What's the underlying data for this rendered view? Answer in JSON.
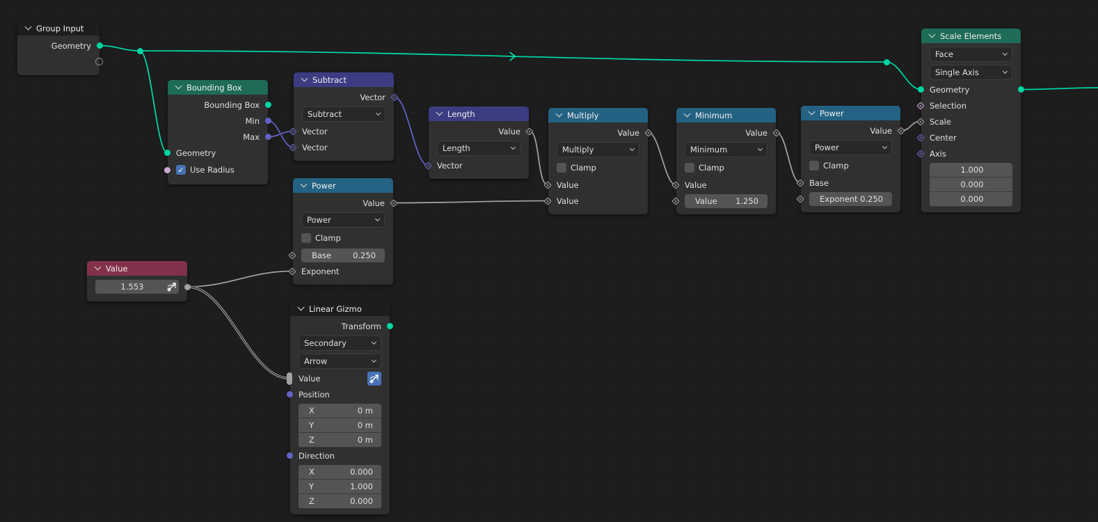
{
  "colors": {
    "geometry": "#00d6a3",
    "vector": "#6363c7",
    "float": "#a1a1a1",
    "boolean": "#cca6d6",
    "header_input": "#1d1d1d",
    "header_geometry": "#1e6b57",
    "header_vector": "#3c3c83",
    "header_converter": "#246283",
    "header_value": "#83314a",
    "checkbox_on": "#4772b3"
  },
  "nodes": [
    {
      "id": "gi",
      "title": "Group Input",
      "header": "header_input",
      "rows": [
        {
          "type": "out",
          "key": "geometry",
          "label": "Geometry",
          "sock": "geometry"
        },
        {
          "type": "out",
          "key": "empty",
          "label": "",
          "sock": "hollow"
        }
      ]
    },
    {
      "id": "bb",
      "title": "Bounding Box",
      "header": "header_geometry",
      "rows": [
        {
          "type": "out",
          "key": "bbox",
          "label": "Bounding Box",
          "sock": "geometry"
        },
        {
          "type": "out",
          "key": "min",
          "label": "Min",
          "sock": "vector"
        },
        {
          "type": "out",
          "key": "max",
          "label": "Max",
          "sock": "vector"
        },
        {
          "type": "in",
          "key": "geometry",
          "label": "Geometry",
          "sock": "geometry"
        },
        {
          "type": "check",
          "key": "use_radius",
          "label": "Use Radius",
          "checked": true,
          "sock": "boolean"
        }
      ]
    },
    {
      "id": "sub",
      "title": "Subtract",
      "header": "header_vector",
      "rows": [
        {
          "type": "out",
          "key": "vector",
          "label": "Vector",
          "sock": "vector",
          "diamond": true
        },
        {
          "type": "select",
          "value": "Subtract"
        },
        {
          "type": "in",
          "key": "vector1",
          "label": "Vector",
          "sock": "vector",
          "diamond": true
        },
        {
          "type": "in",
          "key": "vector2",
          "label": "Vector",
          "sock": "vector",
          "diamond": true
        }
      ]
    },
    {
      "id": "len",
      "title": "Length",
      "header": "header_vector",
      "rows": [
        {
          "type": "out",
          "key": "value",
          "label": "Value",
          "sock": "float",
          "diamond": true
        },
        {
          "type": "select",
          "value": "Length"
        },
        {
          "type": "in",
          "key": "vector",
          "label": "Vector",
          "sock": "vector",
          "diamond": true
        }
      ]
    },
    {
      "id": "mul",
      "title": "Multiply",
      "header": "header_converter",
      "rows": [
        {
          "type": "out",
          "key": "value",
          "label": "Value",
          "sock": "float",
          "diamond": true
        },
        {
          "type": "select",
          "value": "Multiply"
        },
        {
          "type": "check",
          "label": "Clamp",
          "checked": false
        },
        {
          "type": "in",
          "key": "value1",
          "label": "Value",
          "sock": "float",
          "diamond": true
        },
        {
          "type": "in",
          "key": "value2",
          "label": "Value",
          "sock": "float",
          "diamond": true
        }
      ]
    },
    {
      "id": "min",
      "title": "Minimum",
      "header": "header_converter",
      "rows": [
        {
          "type": "out",
          "key": "value",
          "label": "Value",
          "sock": "float",
          "diamond": true
        },
        {
          "type": "select",
          "value": "Minimum"
        },
        {
          "type": "check",
          "label": "Clamp",
          "checked": false
        },
        {
          "type": "in",
          "key": "value1",
          "label": "Value",
          "sock": "float",
          "diamond": true
        },
        {
          "type": "field",
          "key": "value2",
          "label": "Value",
          "value": "1.250",
          "sock": "float",
          "diamond": true
        }
      ]
    },
    {
      "id": "pow2",
      "title": "Power",
      "header": "header_converter",
      "rows": [
        {
          "type": "out",
          "key": "value",
          "label": "Value",
          "sock": "float",
          "diamond": true
        },
        {
          "type": "select",
          "value": "Power"
        },
        {
          "type": "check",
          "label": "Clamp",
          "checked": false
        },
        {
          "type": "in",
          "key": "base",
          "label": "Base",
          "sock": "float",
          "diamond": true
        },
        {
          "type": "field",
          "key": "exponent",
          "label": "Exponent",
          "value": "0.250",
          "sock": "float",
          "diamond": true
        }
      ]
    },
    {
      "id": "se",
      "title": "Scale Elements",
      "header": "header_geometry",
      "rows": [
        {
          "type": "select",
          "value": "Face"
        },
        {
          "type": "select",
          "value": "Single Axis"
        },
        {
          "type": "inout",
          "key": "geometry",
          "label": "Geometry",
          "sock": "geometry"
        },
        {
          "type": "in",
          "key": "selection",
          "label": "Selection",
          "sock": "boolean",
          "diamond": true
        },
        {
          "type": "in",
          "key": "scale",
          "label": "Scale",
          "sock": "float",
          "diamond": true
        },
        {
          "type": "in",
          "key": "center",
          "label": "Center",
          "sock": "vector",
          "diamond": true
        },
        {
          "type": "in",
          "key": "axis",
          "label": "Axis",
          "sock": "vector",
          "diamond": true
        },
        {
          "type": "vec",
          "center": true,
          "values": [
            {
              "label": "",
              "value": "1.000"
            },
            {
              "label": "",
              "value": "0.000"
            },
            {
              "label": "",
              "value": "0.000"
            }
          ]
        }
      ]
    },
    {
      "id": "pow1",
      "title": "Power",
      "header": "header_converter",
      "rows": [
        {
          "type": "out",
          "key": "value",
          "label": "Value",
          "sock": "float",
          "diamond": true
        },
        {
          "type": "select",
          "value": "Power"
        },
        {
          "type": "check",
          "label": "Clamp",
          "checked": false
        },
        {
          "type": "field",
          "key": "base",
          "label": "Base",
          "value": "0.250",
          "sock": "float",
          "diamond": true
        },
        {
          "type": "in",
          "key": "exponent",
          "label": "Exponent",
          "sock": "float",
          "diamond": true
        }
      ]
    },
    {
      "id": "val",
      "title": "Value",
      "header": "header_value",
      "rows": [
        {
          "type": "valuefield",
          "key": "value",
          "value": "1.553",
          "sock": "float",
          "icon": "gizmo-icon"
        }
      ]
    },
    {
      "id": "giz",
      "title": "Linear Gizmo",
      "header": "header_input",
      "rows": [
        {
          "type": "out",
          "key": "transform",
          "label": "Transform",
          "sock": "geometry"
        },
        {
          "type": "select",
          "value": "Secondary"
        },
        {
          "type": "select",
          "value": "Arrow"
        },
        {
          "type": "gizmoin",
          "key": "value",
          "label": "Value",
          "sock": "float",
          "icon": "gizmo-icon"
        },
        {
          "type": "in",
          "key": "position",
          "label": "Position",
          "sock": "vector"
        },
        {
          "type": "vec",
          "values": [
            {
              "label": "X",
              "value": "0 m"
            },
            {
              "label": "Y",
              "value": "0 m"
            },
            {
              "label": "Z",
              "value": "0 m"
            }
          ]
        },
        {
          "type": "in",
          "key": "direction",
          "label": "Direction",
          "sock": "vector"
        },
        {
          "type": "vec",
          "values": [
            {
              "label": "X",
              "value": "0.000"
            },
            {
              "label": "Y",
              "value": "1.000"
            },
            {
              "label": "Z",
              "value": "0.000"
            }
          ]
        }
      ]
    }
  ],
  "links": [
    {
      "from": "gi.geometry",
      "to": "rA",
      "color": "geometry"
    },
    {
      "from": "rA",
      "to": "bb.geometry",
      "color": "geometry"
    },
    {
      "from": "rA",
      "to": "rB",
      "color": "geometry",
      "arrow": true
    },
    {
      "from": "rB",
      "to": "se.geometry",
      "color": "geometry"
    },
    {
      "from": "se.geometry",
      "to": "offscreen",
      "color": "geometry"
    },
    {
      "from": "bb.min",
      "to": "sub.vector2",
      "color": "vector"
    },
    {
      "from": "bb.max",
      "to": "sub.vector1",
      "color": "vector"
    },
    {
      "from": "sub.vector",
      "to": "len.vector",
      "color": "vector"
    },
    {
      "from": "len.value",
      "to": "mul.value1",
      "color": "float"
    },
    {
      "from": "pow1.value",
      "to": "mul.value2",
      "color": "float"
    },
    {
      "from": "mul.value",
      "to": "min.value1",
      "color": "float"
    },
    {
      "from": "min.value",
      "to": "pow2.base",
      "color": "float"
    },
    {
      "from": "pow2.value",
      "to": "se.scale",
      "color": "float"
    },
    {
      "from": "val.value",
      "to": "pow1.exponent",
      "color": "float"
    },
    {
      "from": "val.value",
      "to": "giz.value",
      "color": "float",
      "double": true
    }
  ]
}
